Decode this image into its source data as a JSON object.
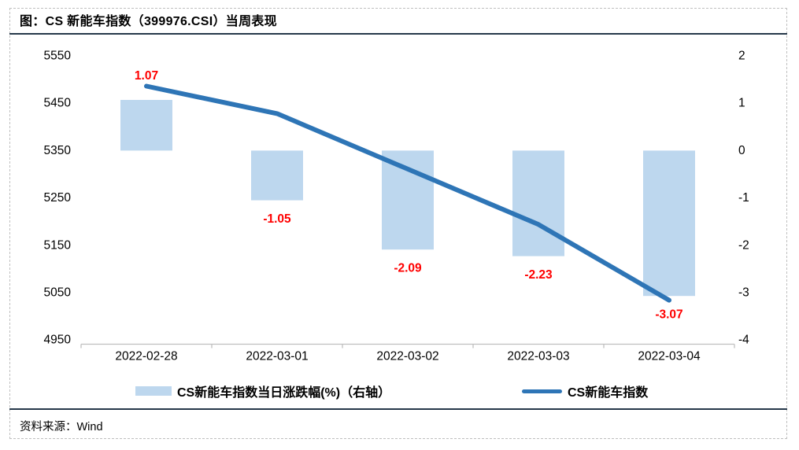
{
  "title": "图：CS 新能车指数（399976.CSI）当周表现",
  "source": {
    "label": "资料来源：Wind"
  },
  "colors": {
    "bar": "#BDD7EE",
    "line": "#2E75B6",
    "data_label": "#FF0000",
    "rule": "#26384A",
    "axis_line": "#BFBFBF",
    "border": "#BFBFBF",
    "text": "#000000"
  },
  "chart_data": {
    "type": "bar",
    "subtype": "combo-bar-line",
    "categories": [
      "2022-02-28",
      "2022-03-01",
      "2022-03-02",
      "2022-03-03",
      "2022-03-04"
    ],
    "series": [
      {
        "name": "CS新能车指数当日涨跌幅(%)（右轴）",
        "type": "bar",
        "axis": "right",
        "values": [
          1.07,
          -1.05,
          -2.09,
          -2.23,
          -3.07
        ],
        "data_labels": [
          "1.07",
          "-1.05",
          "-2.09",
          "-2.23",
          "-3.07"
        ]
      },
      {
        "name": "CS新能车指数",
        "type": "line",
        "axis": "left",
        "values": [
          5486,
          5428,
          5311,
          5194,
          5034
        ]
      }
    ],
    "left_axis": {
      "min": 4950,
      "max": 5550,
      "ticks": [
        "5550",
        "5450",
        "5350",
        "5250",
        "5150",
        "5050",
        "4950"
      ]
    },
    "right_axis": {
      "min": -4,
      "max": 2,
      "ticks": [
        "2",
        "1",
        "0",
        "-1",
        "-2",
        "-3",
        "-4"
      ]
    },
    "grid": false,
    "legend_position": "bottom"
  }
}
